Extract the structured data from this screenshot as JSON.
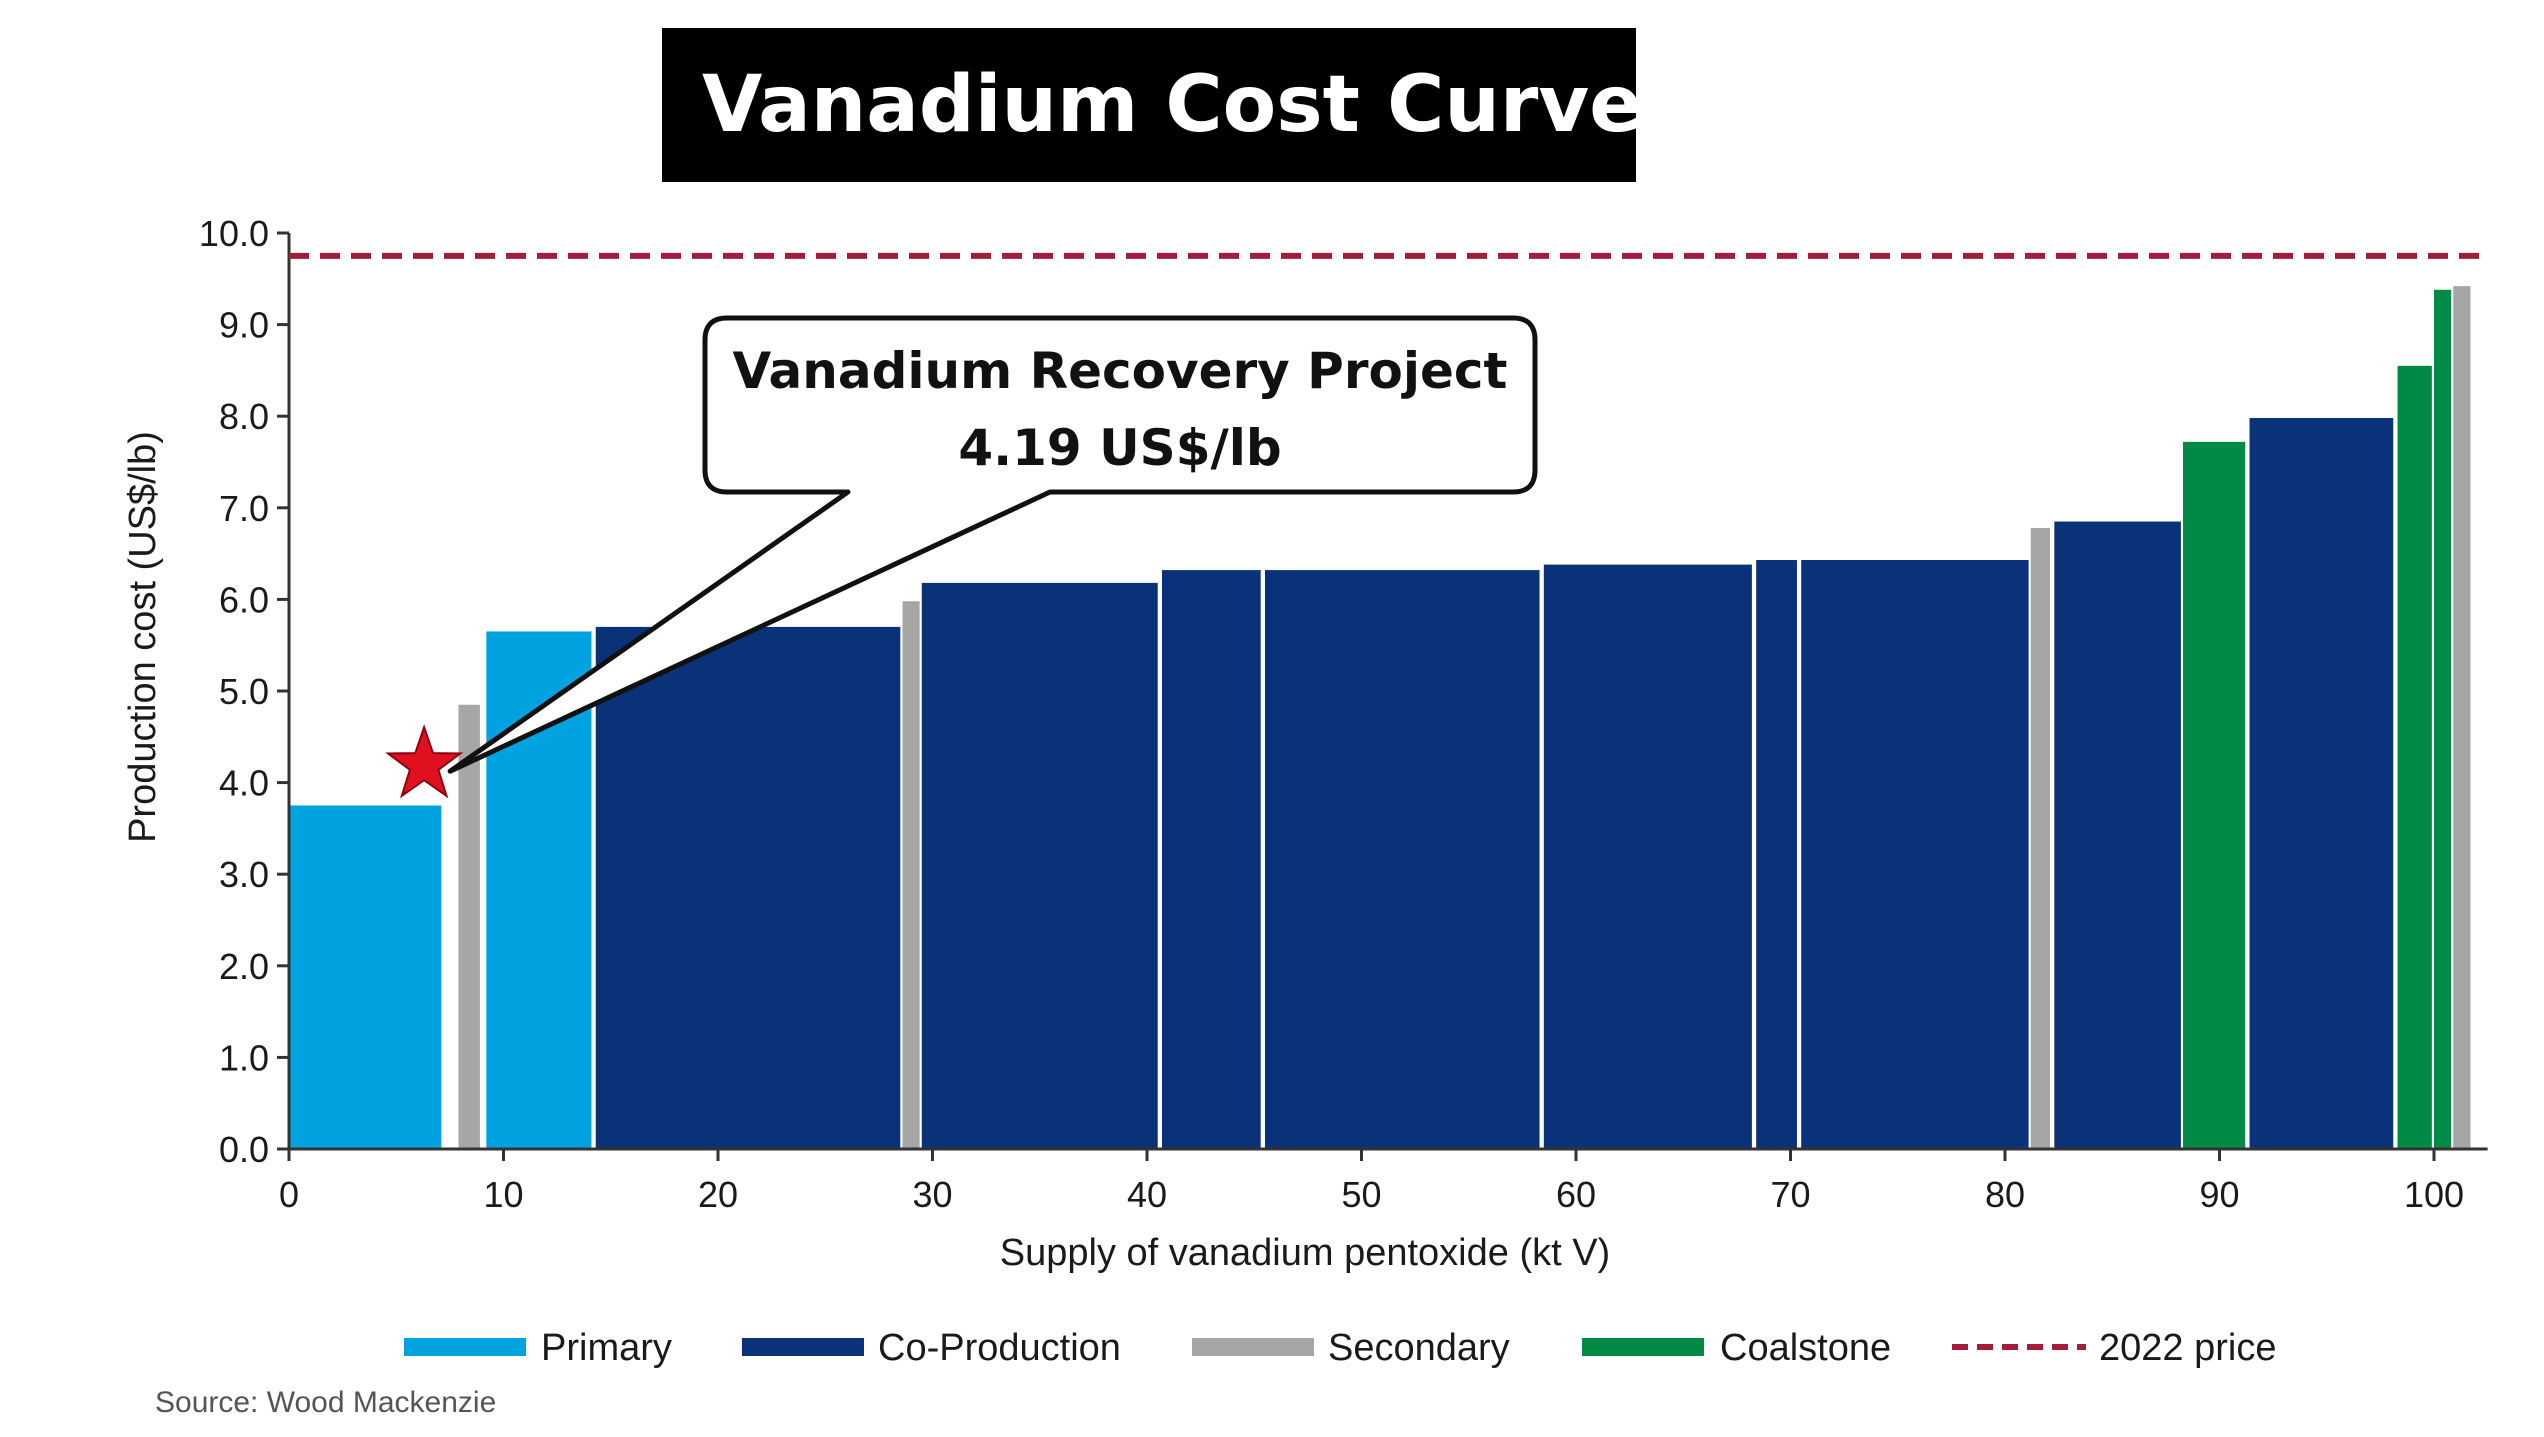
{
  "title": "Vanadium Cost Curve",
  "source": "Source: Wood Mackenzie",
  "callout": {
    "line1": "Vanadium Recovery Project",
    "line2": "4.19 US$/lb",
    "x": 6.3,
    "y": 4.19
  },
  "colors": {
    "Primary": "#00a3e0",
    "Co-Production": "#0a3278",
    "Secondary": "#a6a6a6",
    "Coalstone": "#008a45",
    "price_line": "#a31c3a",
    "star": "#e01020"
  },
  "chart_data": {
    "type": "bar",
    "xlabel": "Supply of vanadium pentoxide (kt V)",
    "ylabel": "Production cost (US$/lb)",
    "xlim": [
      0,
      102.5
    ],
    "ylim": [
      0,
      10
    ],
    "xticks": [
      "0",
      "10",
      "20",
      "30",
      "40",
      "50",
      "60",
      "70",
      "80",
      "90",
      "100"
    ],
    "yticks": [
      "0.0",
      "1.0",
      "2.0",
      "3.0",
      "4.0",
      "5.0",
      "6.0",
      "7.0",
      "8.0",
      "9.0",
      "10.0"
    ],
    "reference_line": {
      "name": "2022 price",
      "value": 9.75
    },
    "legend": [
      "Primary",
      "Co-Production",
      "Secondary",
      "Coalstone",
      "2022 price"
    ],
    "legend_position": "bottom",
    "bars": [
      {
        "category": "Primary",
        "x0": 0,
        "x1": 7.1,
        "value": 3.75
      },
      {
        "category": "Secondary",
        "x0": 7.9,
        "x1": 8.9,
        "value": 4.85
      },
      {
        "category": "Primary",
        "x0": 9.2,
        "x1": 14.1,
        "value": 5.65
      },
      {
        "category": "Co-Production",
        "x0": 14.3,
        "x1": 28.5,
        "value": 5.7
      },
      {
        "category": "Secondary",
        "x0": 28.6,
        "x1": 29.4,
        "value": 5.98
      },
      {
        "category": "Co-Production",
        "x0": 29.5,
        "x1": 40.5,
        "value": 6.18
      },
      {
        "category": "Co-Production",
        "x0": 40.7,
        "x1": 45.3,
        "value": 6.32
      },
      {
        "category": "Co-Production",
        "x0": 45.5,
        "x1": 58.3,
        "value": 6.32
      },
      {
        "category": "Co-Production",
        "x0": 58.5,
        "x1": 68.2,
        "value": 6.38
      },
      {
        "category": "Co-Production",
        "x0": 68.4,
        "x1": 70.3,
        "value": 6.43
      },
      {
        "category": "Co-Production",
        "x0": 70.5,
        "x1": 81.1,
        "value": 6.43
      },
      {
        "category": "Secondary",
        "x0": 81.2,
        "x1": 82.1,
        "value": 6.78
      },
      {
        "category": "Co-Production",
        "x0": 82.3,
        "x1": 88.2,
        "value": 6.85
      },
      {
        "category": "Coalstone",
        "x0": 88.3,
        "x1": 91.2,
        "value": 7.72
      },
      {
        "category": "Co-Production",
        "x0": 91.4,
        "x1": 98.1,
        "value": 7.98
      },
      {
        "category": "Coalstone",
        "x0": 98.3,
        "x1": 99.9,
        "value": 8.55
      },
      {
        "category": "Coalstone",
        "x0": 100.0,
        "x1": 100.8,
        "value": 9.38
      },
      {
        "category": "Secondary",
        "x0": 100.9,
        "x1": 101.7,
        "value": 9.42
      }
    ]
  }
}
